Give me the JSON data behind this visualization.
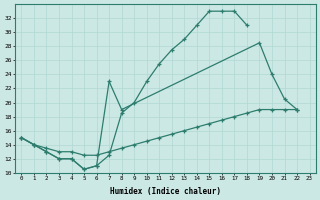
{
  "xlabel": "Humidex (Indice chaleur)",
  "bg_color": "#cce8e4",
  "line_color": "#2d7d6e",
  "xlim": [
    -0.5,
    23.5
  ],
  "ylim": [
    10,
    34
  ],
  "yticks": [
    10,
    12,
    14,
    16,
    18,
    20,
    22,
    24,
    26,
    28,
    30,
    32
  ],
  "xticks": [
    0,
    1,
    2,
    3,
    4,
    5,
    6,
    7,
    8,
    9,
    10,
    11,
    12,
    13,
    14,
    15,
    16,
    17,
    18,
    19,
    20,
    21,
    22,
    23
  ],
  "line1_x": [
    0,
    1,
    2,
    3,
    4,
    5,
    6,
    7,
    8,
    9,
    10,
    11,
    12,
    13,
    14,
    15,
    16,
    17,
    18
  ],
  "line1_y": [
    15,
    14,
    13,
    12,
    12,
    10.5,
    11,
    12.5,
    18.5,
    20,
    23,
    25.5,
    27.5,
    29,
    31,
    33,
    33,
    33,
    31
  ],
  "line2_x": [
    0,
    1,
    2,
    3,
    4,
    5,
    6,
    7,
    8,
    19,
    20,
    21,
    22
  ],
  "line2_y": [
    15,
    14,
    13,
    12,
    12,
    10.5,
    11,
    23,
    19,
    28.5,
    24,
    20.5,
    19
  ],
  "line3_x": [
    0,
    1,
    2,
    3,
    4,
    5,
    6,
    7,
    8,
    9,
    10,
    11,
    12,
    13,
    14,
    15,
    16,
    17,
    18,
    19,
    20,
    21,
    22
  ],
  "line3_y": [
    15,
    14,
    13.5,
    13,
    13,
    12.5,
    12.5,
    13,
    13.5,
    14,
    14.5,
    15,
    15.5,
    16,
    16.5,
    17,
    17.5,
    18,
    18.5,
    19,
    19,
    19,
    19
  ]
}
